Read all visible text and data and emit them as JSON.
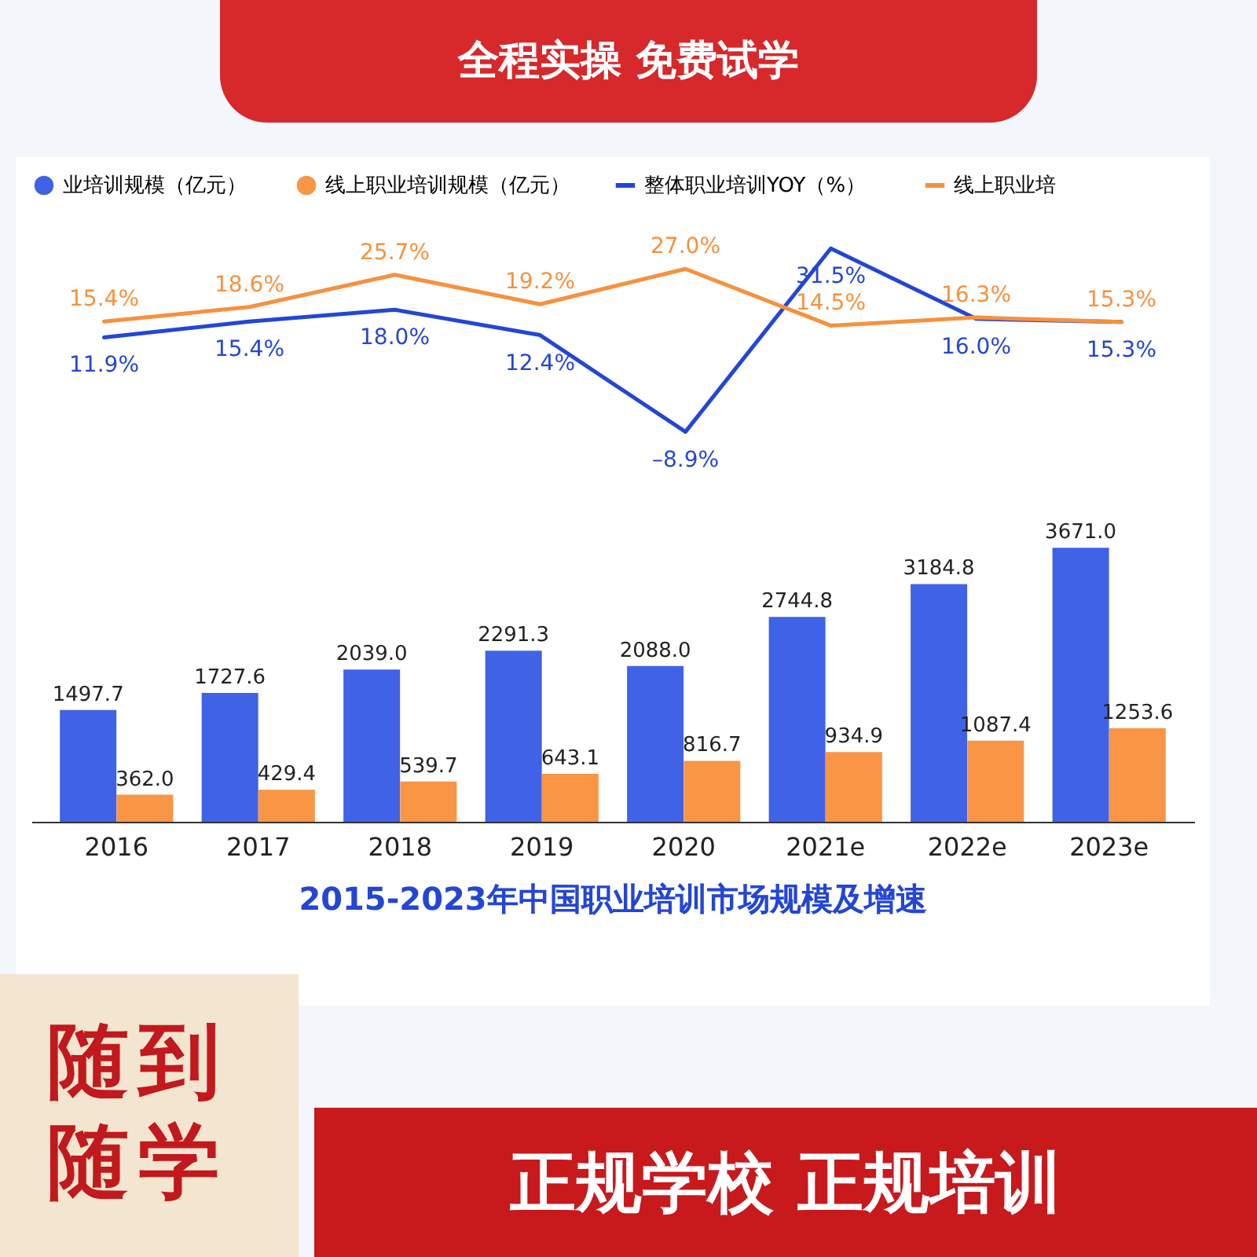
{
  "chart_data": [
    {
      "type": "line",
      "categories": [
        null,
        null,
        null,
        null,
        null,
        null,
        null,
        null
      ],
      "series": [
        {
          "name": "整体职业培训YOY（%）",
          "color": "#2346d6",
          "values": [
            11.9,
            15.4,
            18.0,
            12.4,
            -8.9,
            31.5,
            16.0,
            15.3
          ],
          "value_labels": [
            "11.9%",
            "15.4%",
            "18.0%",
            "12.4%",
            "–8.9%",
            "31.5%",
            "16.0%",
            "15.3%"
          ]
        },
        {
          "name": "线上职业培",
          "color": "#f7913d",
          "values": [
            15.4,
            18.6,
            25.7,
            19.2,
            27.0,
            14.5,
            16.3,
            15.3
          ],
          "value_labels": [
            "15.4%",
            "18.6%",
            "25.7%",
            "19.2%",
            "27.0%",
            "14.5%",
            "16.3%",
            "15.3%"
          ]
        }
      ],
      "legend": "top",
      "grid": false,
      "tick_labels": false,
      "annotations": [
        "全程实操 免费试学",
        "随到随学",
        "正规学校 正规培训"
      ]
    },
    {
      "type": "bar",
      "title": "2015-2023年中国职业培训市场规模及增速",
      "categories": [
        "2016",
        "2017",
        "2018",
        "2019",
        "2020",
        "2021e",
        "2022e",
        "2023e"
      ],
      "series": [
        {
          "name": "业培训规模（亿元）",
          "color": "#4062e6",
          "values": [
            1497.7,
            1727.6,
            2039.0,
            2291.3,
            2088.0,
            2744.8,
            3184.8,
            3671.0
          ],
          "value_labels": [
            "1497.7",
            "1727.6",
            "2039.0",
            "2291.3",
            "2088.0",
            "2744.8",
            "3184.8",
            "3671.0"
          ]
        },
        {
          "name": "线上职业培训规模（亿元）",
          "color": "#f99545",
          "values": [
            362.0,
            429.4,
            539.7,
            643.1,
            816.7,
            934.9,
            1087.4,
            1253.6
          ],
          "value_labels": [
            "362.0",
            "429.4",
            "539.7",
            "643.1",
            "816.7",
            "934.9",
            "1087.4",
            "1253.6"
          ]
        }
      ],
      "legend": "top",
      "grid": false,
      "tick_labels": "x"
    }
  ]
}
